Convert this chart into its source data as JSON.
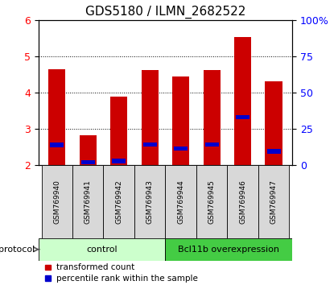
{
  "title": "GDS5180 / ILMN_2682522",
  "samples": [
    "GSM769940",
    "GSM769941",
    "GSM769942",
    "GSM769943",
    "GSM769944",
    "GSM769945",
    "GSM769946",
    "GSM769947"
  ],
  "transformed_counts": [
    4.65,
    2.82,
    3.88,
    4.62,
    4.45,
    4.63,
    5.52,
    4.32
  ],
  "percentile_ranks": [
    2.56,
    2.08,
    2.12,
    2.57,
    2.46,
    2.57,
    3.33,
    2.38
  ],
  "ylim": [
    2.0,
    6.0
  ],
  "yticks_left": [
    2,
    3,
    4,
    5,
    6
  ],
  "yticks_right": [
    0,
    25,
    50,
    75,
    100
  ],
  "bar_color": "#cc0000",
  "percentile_color": "#0000cc",
  "control_color": "#ccffcc",
  "bcl_color": "#44cc44",
  "background_color": "#ffffff",
  "bar_width": 0.55,
  "title_fontsize": 11,
  "legend_items": [
    {
      "color": "#cc0000",
      "label": "transformed count"
    },
    {
      "color": "#0000cc",
      "label": "percentile rank within the sample"
    }
  ]
}
